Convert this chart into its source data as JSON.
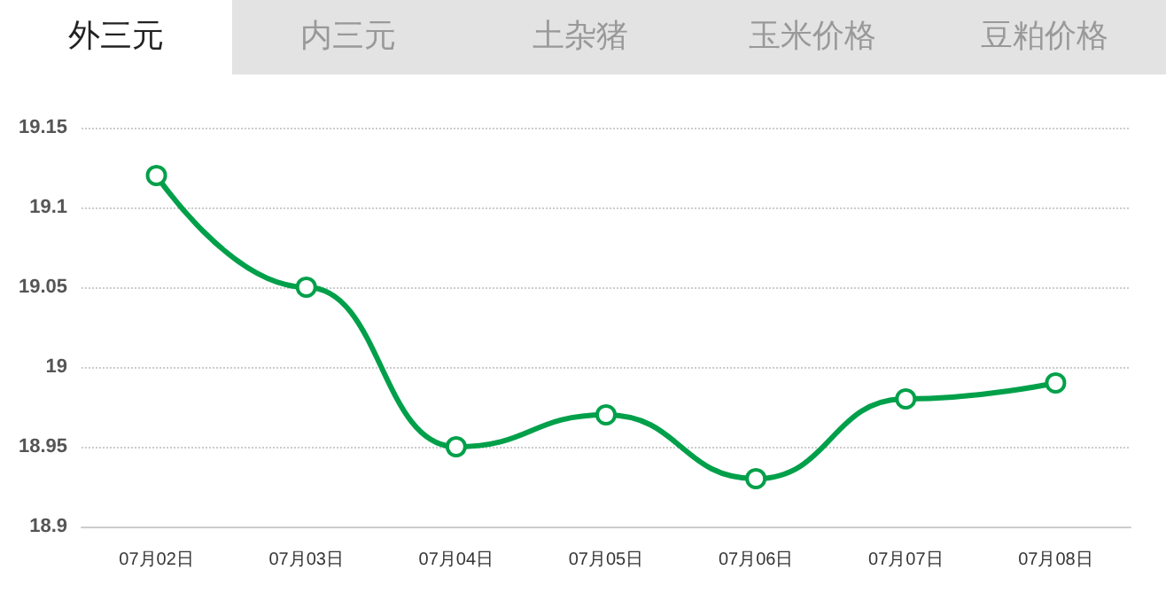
{
  "chart_data": {
    "type": "line",
    "title": "外三元",
    "annotations": [
      "内三元",
      "土杂猪",
      "玉米价格",
      "豆粕价格"
    ],
    "categories": [
      "07月02日",
      "07月03日",
      "07月04日",
      "07月05日",
      "07月06日",
      "07月07日",
      "07月08日"
    ],
    "series": [
      {
        "color": "#00a04a",
        "values": [
          19.12,
          19.05,
          18.95,
          18.97,
          18.93,
          18.98,
          18.99
        ]
      }
    ],
    "ylim": [
      18.9,
      19.15
    ],
    "yticks": [
      18.9,
      18.95,
      19,
      19.05,
      19.1,
      19.15
    ],
    "grid": "y",
    "marker": "circle",
    "line_style": "solid"
  }
}
